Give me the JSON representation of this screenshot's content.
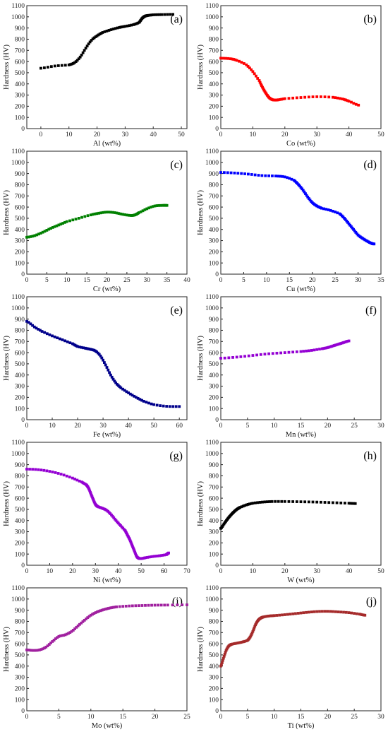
{
  "chart_data": [
    {
      "id": "a",
      "type": "scatter",
      "panel_label": "(a)",
      "xlabel": "Al (wt%)",
      "ylabel": "Hardness (HV)",
      "xlim": [
        -5,
        52
      ],
      "ylim": [
        0,
        1100
      ],
      "xticks": [
        0,
        10,
        20,
        30,
        40,
        50
      ],
      "yticks": [
        0,
        100,
        200,
        300,
        400,
        500,
        600,
        700,
        800,
        900,
        1000,
        1100
      ],
      "color": "#000000",
      "x": [
        0,
        5,
        10,
        12,
        14,
        16,
        18,
        20,
        22,
        25,
        28,
        30,
        33,
        35,
        36,
        37,
        38,
        40,
        43,
        47
      ],
      "y": [
        540,
        560,
        570,
        590,
        640,
        720,
        790,
        830,
        860,
        885,
        905,
        915,
        930,
        950,
        985,
        1005,
        1012,
        1018,
        1020,
        1022
      ]
    },
    {
      "id": "b",
      "type": "scatter",
      "panel_label": "(b)",
      "xlabel": "Co (wt%)",
      "ylabel": "Hardness (HV)",
      "xlim": [
        0,
        50
      ],
      "ylim": [
        0,
        1100
      ],
      "xticks": [
        0,
        10,
        20,
        30,
        40,
        50
      ],
      "yticks": [
        0,
        100,
        200,
        300,
        400,
        500,
        600,
        700,
        800,
        900,
        1000,
        1100
      ],
      "color": "#ff0000",
      "x": [
        0,
        3,
        5,
        8,
        10,
        12,
        13,
        14,
        15,
        16,
        17,
        18,
        20,
        25,
        30,
        35,
        38,
        40,
        43
      ],
      "y": [
        630,
        625,
        610,
        570,
        510,
        430,
        370,
        320,
        280,
        260,
        255,
        258,
        268,
        278,
        285,
        280,
        265,
        245,
        210
      ]
    },
    {
      "id": "c",
      "type": "scatter",
      "panel_label": "(c)",
      "xlabel": "Cr (wt%)",
      "ylabel": "Hardness (HV)",
      "xlim": [
        0,
        40
      ],
      "ylim": [
        0,
        1100
      ],
      "xticks": [
        0,
        5,
        10,
        15,
        20,
        25,
        30,
        35,
        40
      ],
      "yticks": [
        0,
        100,
        200,
        300,
        400,
        500,
        600,
        700,
        800,
        900,
        1000,
        1100
      ],
      "color": "#008000",
      "x": [
        0,
        2,
        4,
        6,
        8,
        10,
        13,
        16,
        18,
        20,
        22,
        24,
        26,
        27,
        28,
        30,
        32,
        34,
        35
      ],
      "y": [
        330,
        345,
        375,
        410,
        440,
        470,
        500,
        530,
        545,
        555,
        550,
        535,
        525,
        530,
        550,
        585,
        610,
        615,
        615
      ]
    },
    {
      "id": "d",
      "type": "scatter",
      "panel_label": "(d)",
      "xlabel": "Cu (wt%)",
      "ylabel": "Hardness (HV)",
      "xlim": [
        0,
        35
      ],
      "ylim": [
        0,
        1100
      ],
      "xticks": [
        0,
        5,
        10,
        15,
        20,
        25,
        30,
        35
      ],
      "yticks": [
        0,
        100,
        200,
        300,
        400,
        500,
        600,
        700,
        800,
        900,
        1000,
        1100
      ],
      "color": "#0000ff",
      "x": [
        0,
        3,
        6,
        9,
        12,
        14,
        16,
        17,
        18,
        19,
        20,
        21,
        22,
        24,
        26,
        27,
        28,
        29,
        30,
        31,
        32,
        33,
        33.5
      ],
      "y": [
        910,
        905,
        895,
        882,
        878,
        870,
        840,
        800,
        750,
        690,
        640,
        610,
        590,
        570,
        540,
        500,
        450,
        400,
        350,
        320,
        295,
        275,
        270
      ]
    },
    {
      "id": "e",
      "type": "scatter",
      "panel_label": "(e)",
      "xlabel": "Fe (wt%)",
      "ylabel": "Hardness (HV)",
      "xlim": [
        0,
        63
      ],
      "ylim": [
        0,
        1100
      ],
      "xticks": [
        0,
        10,
        20,
        30,
        40,
        50,
        60
      ],
      "yticks": [
        0,
        100,
        200,
        300,
        400,
        500,
        600,
        700,
        800,
        900,
        1000,
        1100
      ],
      "color": "#00008b",
      "x": [
        0,
        3,
        6,
        10,
        14,
        18,
        20,
        23,
        25,
        27,
        29,
        31,
        33,
        35,
        37,
        40,
        43,
        46,
        50,
        55,
        60
      ],
      "y": [
        880,
        830,
        790,
        750,
        715,
        680,
        655,
        640,
        630,
        615,
        570,
        490,
        400,
        330,
        285,
        240,
        200,
        165,
        135,
        120,
        118
      ]
    },
    {
      "id": "f",
      "type": "scatter",
      "panel_label": "(f)",
      "xlabel": "Mn (wt%)",
      "ylabel": "Hardness (HV)",
      "xlim": [
        0,
        30
      ],
      "ylim": [
        0,
        1100
      ],
      "xticks": [
        0,
        5,
        10,
        15,
        20,
        25,
        30
      ],
      "yticks": [
        0,
        100,
        200,
        300,
        400,
        500,
        600,
        700,
        800,
        900,
        1000,
        1100
      ],
      "color": "#9400d3",
      "x": [
        0,
        3,
        6,
        9,
        12,
        15,
        17,
        19,
        20,
        21,
        22,
        23,
        24
      ],
      "y": [
        550,
        560,
        575,
        590,
        600,
        610,
        620,
        635,
        645,
        660,
        675,
        690,
        705
      ]
    },
    {
      "id": "g",
      "type": "scatter",
      "panel_label": "(g)",
      "xlabel": "Ni (wt%)",
      "ylabel": "Hardness (HV)",
      "xlim": [
        0,
        70
      ],
      "ylim": [
        0,
        1100
      ],
      "xticks": [
        0,
        10,
        20,
        30,
        40,
        50,
        60,
        70
      ],
      "yticks": [
        0,
        100,
        200,
        300,
        400,
        500,
        600,
        700,
        800,
        900,
        1000,
        1100
      ],
      "color": "#9400d3",
      "x": [
        0,
        5,
        10,
        15,
        20,
        24,
        26,
        27,
        28,
        29,
        30,
        31,
        33,
        35,
        37,
        39,
        41,
        43,
        44,
        45,
        46,
        47,
        48,
        49,
        50,
        52,
        55,
        58,
        61,
        62
      ],
      "y": [
        860,
        855,
        840,
        815,
        780,
        745,
        720,
        690,
        640,
        590,
        545,
        525,
        510,
        490,
        450,
        400,
        355,
        310,
        270,
        230,
        180,
        130,
        80,
        62,
        60,
        68,
        78,
        85,
        95,
        110
      ]
    },
    {
      "id": "h",
      "type": "scatter",
      "panel_label": "(h)",
      "xlabel": "W (wt%)",
      "ylabel": "Hardness (HV)",
      "xlim": [
        0,
        50
      ],
      "ylim": [
        0,
        1100
      ],
      "xticks": [
        0,
        10,
        20,
        30,
        40,
        50
      ],
      "yticks": [
        0,
        100,
        200,
        300,
        400,
        500,
        600,
        700,
        800,
        900,
        1000,
        1100
      ],
      "color": "#000000",
      "x": [
        0,
        1,
        2,
        3,
        4,
        5,
        6,
        8,
        10,
        13,
        16,
        20,
        25,
        30,
        35,
        40,
        42
      ],
      "y": [
        330,
        370,
        410,
        445,
        475,
        500,
        518,
        540,
        555,
        565,
        570,
        570,
        568,
        565,
        560,
        555,
        552
      ]
    },
    {
      "id": "i",
      "type": "scatter",
      "panel_label": "(i)",
      "xlabel": "Mo (wt%)",
      "ylabel": "Hardness (HV)",
      "xlim": [
        0,
        25
      ],
      "ylim": [
        0,
        1100
      ],
      "xticks": [
        0,
        5,
        10,
        15,
        20,
        25
      ],
      "yticks": [
        0,
        100,
        200,
        300,
        400,
        500,
        600,
        700,
        800,
        900,
        1000,
        1100
      ],
      "color": "#a0209f",
      "x": [
        0,
        1,
        2,
        3,
        4,
        5,
        6,
        7,
        8,
        9,
        10,
        11,
        12,
        13,
        14,
        16,
        18,
        20,
        22,
        25
      ],
      "y": [
        545,
        540,
        545,
        570,
        620,
        665,
        680,
        710,
        760,
        810,
        855,
        885,
        905,
        920,
        930,
        938,
        942,
        945,
        946,
        948
      ]
    },
    {
      "id": "j",
      "type": "scatter",
      "panel_label": "(j)",
      "xlabel": "Ti (wt%)",
      "ylabel": "Hardness (HV)",
      "xlim": [
        0,
        30
      ],
      "ylim": [
        0,
        1100
      ],
      "xticks": [
        0,
        5,
        10,
        15,
        20,
        25,
        30
      ],
      "yticks": [
        0,
        100,
        200,
        300,
        400,
        500,
        600,
        700,
        800,
        900,
        1000,
        1100
      ],
      "color": "#a52a2a",
      "x": [
        0,
        0.5,
        1,
        1.5,
        2,
        3,
        4,
        5,
        5.5,
        6,
        6.5,
        7,
        7.5,
        8,
        9,
        10,
        12,
        14,
        16,
        18,
        20,
        22,
        24,
        26,
        27
      ],
      "y": [
        400,
        470,
        540,
        580,
        595,
        605,
        615,
        630,
        660,
        710,
        770,
        810,
        830,
        840,
        848,
        852,
        860,
        870,
        880,
        888,
        890,
        885,
        878,
        865,
        855
      ]
    }
  ]
}
